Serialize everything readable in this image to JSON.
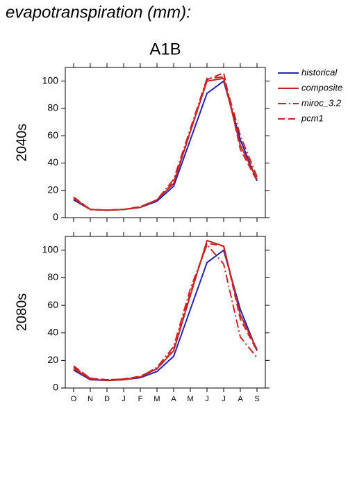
{
  "chart_data": [
    {
      "type": "line",
      "title": "evapotranspiration (mm):",
      "subtitle": "A1B",
      "ylabel": "2040s",
      "ylim": [
        0,
        110
      ],
      "yticks": [
        0,
        20,
        40,
        60,
        80,
        100
      ],
      "series": [
        {
          "name": "historical",
          "color": "#2323b4",
          "dash": "none",
          "values": [
            13,
            6,
            5.5,
            6,
            7.5,
            12,
            23,
            57,
            91,
            100,
            57,
            27
          ]
        },
        {
          "name": "composite",
          "color": "#c82323",
          "dash": "none",
          "values": [
            14,
            6,
            5.5,
            6,
            7.5,
            13,
            25,
            63,
            100,
            102,
            53,
            28
          ]
        },
        {
          "name": "miroc_3.2",
          "color": "#c82323",
          "dash": "12,4,2,4",
          "values": [
            15,
            6,
            5.5,
            6,
            8,
            13,
            28,
            65,
            102,
            103,
            60,
            30
          ]
        },
        {
          "name": "pcm1",
          "color": "#c82323",
          "dash": "10,5",
          "values": [
            15,
            6,
            5.5,
            6,
            8,
            13,
            26,
            63,
            101,
            106,
            50,
            27
          ]
        }
      ]
    },
    {
      "type": "line",
      "ylabel": "2080s",
      "categories": [
        "O",
        "N",
        "D",
        "J",
        "F",
        "M",
        "A",
        "M",
        "J",
        "J",
        "A",
        "S"
      ],
      "ylim": [
        0,
        110
      ],
      "yticks": [
        0,
        20,
        40,
        60,
        80,
        100
      ],
      "series": [
        {
          "color": "#2323b4",
          "dash": "none",
          "values": [
            13,
            6,
            5.5,
            6,
            7.5,
            12,
            23,
            57,
            91,
            100,
            57,
            27
          ]
        },
        {
          "color": "#c82323",
          "dash": "none",
          "values": [
            14,
            6.5,
            5.5,
            6,
            8,
            14,
            27,
            67,
            107,
            103,
            53,
            28
          ]
        },
        {
          "color": "#c82323",
          "dash": "12,4,2,4",
          "values": [
            15,
            7,
            6,
            6.5,
            8,
            15,
            30,
            72,
            104,
            90,
            37,
            22
          ]
        },
        {
          "color": "#c82323",
          "dash": "10,5",
          "values": [
            16,
            7,
            6,
            6.5,
            8.5,
            14,
            28,
            69,
            105,
            103,
            50,
            27
          ]
        }
      ]
    }
  ]
}
